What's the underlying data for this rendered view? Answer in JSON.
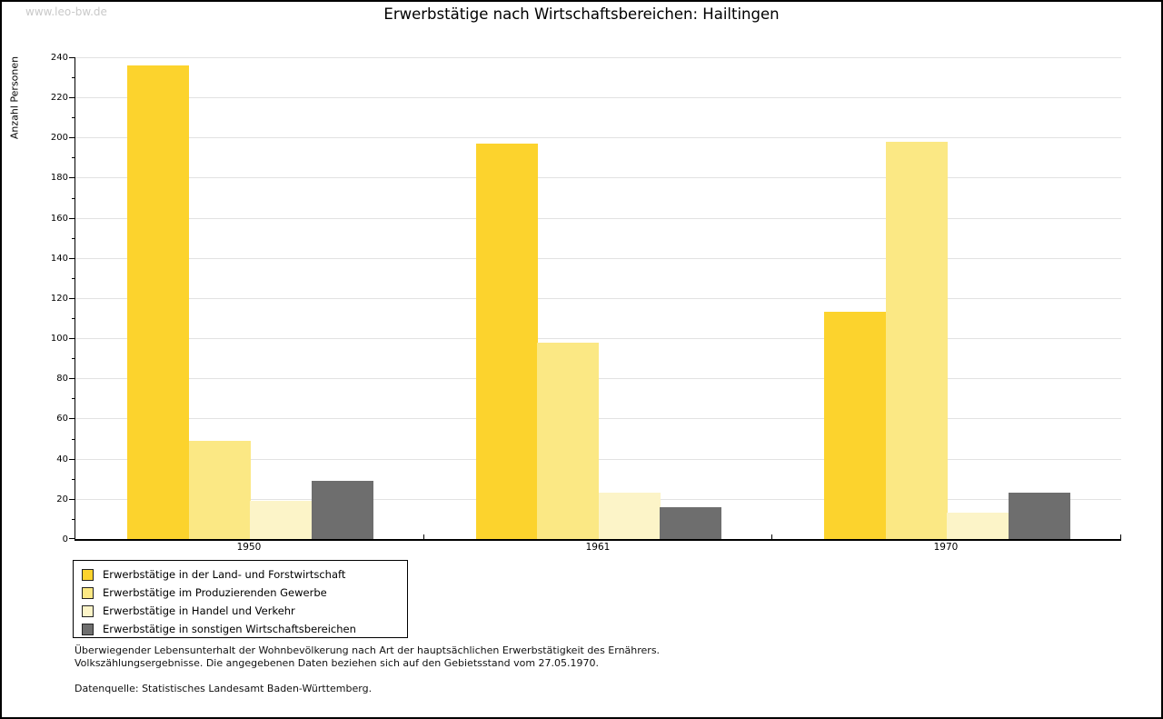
{
  "watermark": "www.leo-bw.de",
  "title": "Erwerbstätige nach Wirtschaftsbereichen: Hailtingen",
  "chart_data": {
    "type": "bar",
    "grouped": true,
    "categories": [
      "1950",
      "1961",
      "1970"
    ],
    "series": [
      {
        "name": "Erwerbstätige in der Land- und Forstwirtschaft",
        "color": "#FCD32D",
        "values": [
          236,
          197,
          113
        ]
      },
      {
        "name": "Erwerbstätige im Produzierenden Gewerbe",
        "color": "#FBE884",
        "values": [
          49,
          98,
          198
        ]
      },
      {
        "name": "Erwerbstätige in Handel und Verkehr",
        "color": "#FCF4C8",
        "values": [
          19,
          23,
          13
        ]
      },
      {
        "name": "Erwerbstätige in sonstigen Wirtschaftsbereichen",
        "color": "#6E6E6E",
        "values": [
          29,
          16,
          23
        ]
      }
    ],
    "title": "Erwerbstätige nach Wirtschaftsbereichen: Hailtingen",
    "xlabel": "",
    "ylabel": "Anzahl Personen",
    "ylim": [
      0,
      240
    ],
    "ytick_step": 20,
    "yminor_step": 10,
    "grid": "horizontal-major",
    "legend_position": "bottom-left",
    "axis_color": "#000000",
    "gridline_color": "#e2e2e2"
  },
  "footer": {
    "line1": "Überwiegender Lebensunterhalt der Wohnbevölkerung nach Art der hauptsächlichen Erwerbstätigkeit des Ernährers.",
    "line2": "Volkszählungsergebnisse. Die angegebenen Daten beziehen sich auf den Gebietsstand vom 27.05.1970.",
    "source": "Datenquelle: Statistisches Landesamt Baden-Württemberg."
  }
}
